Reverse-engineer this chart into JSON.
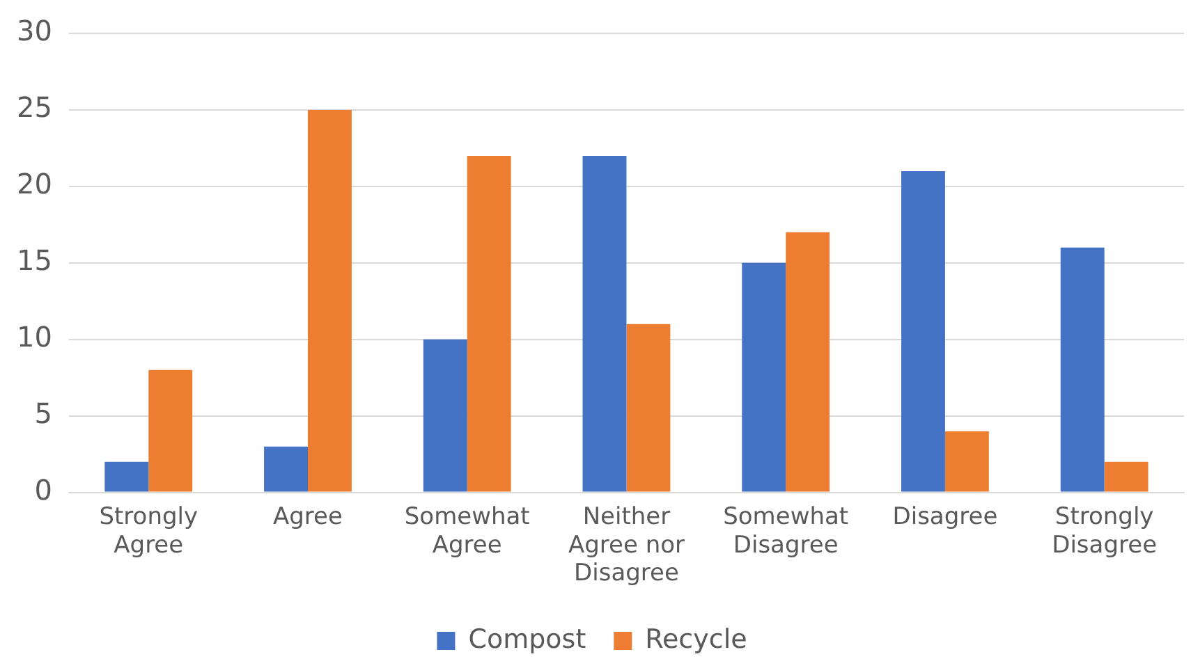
{
  "chart_data": {
    "type": "bar",
    "categories": [
      "Strongly Agree",
      "Agree",
      "Somewhat Agree",
      "Neither Agree nor Disagree",
      "Somewhat Disagree",
      "Disagree",
      "Strongly Disagree"
    ],
    "series": [
      {
        "name": "Compost",
        "color": "#4472c4",
        "values": [
          2,
          3,
          10,
          22,
          15,
          21,
          16
        ]
      },
      {
        "name": "Recycle",
        "color": "#ed7d31",
        "values": [
          8,
          25,
          22,
          11,
          17,
          4,
          2
        ]
      }
    ],
    "ylim": [
      0,
      30
    ],
    "yticks": [
      0,
      5,
      10,
      15,
      20,
      25,
      30
    ],
    "grid": "y",
    "legend": "bottom"
  }
}
